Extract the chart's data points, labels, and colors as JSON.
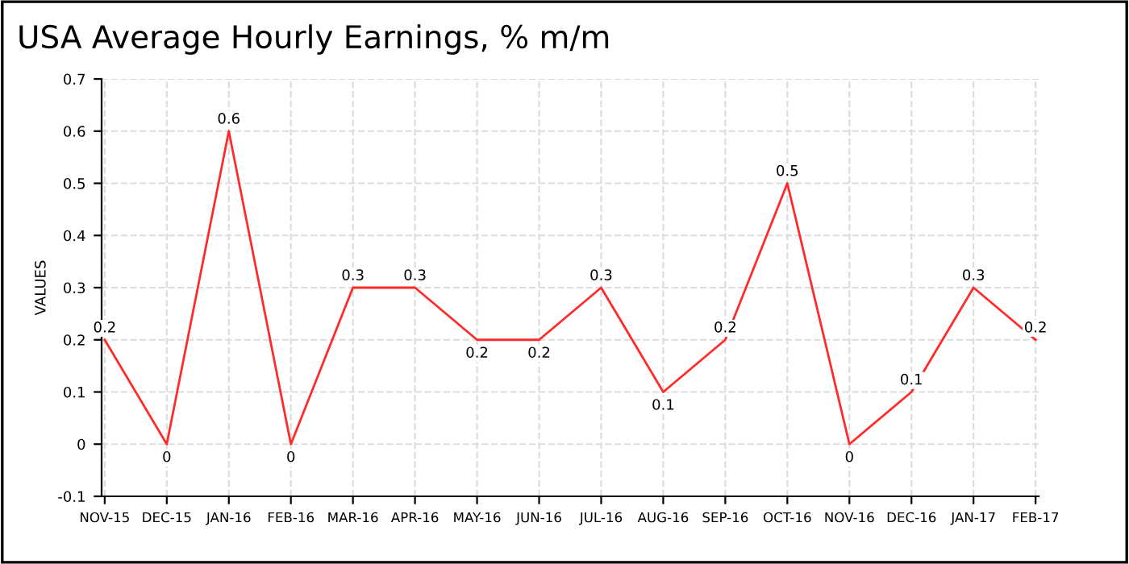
{
  "chart_data": {
    "type": "line",
    "title": "USA Average Hourly Earnings, % m/m",
    "ylabel": "VALUES",
    "categories": [
      "NOV-15",
      "DEC-15",
      "JAN-16",
      "FEB-16",
      "MAR-16",
      "APR-16",
      "MAY-16",
      "JUN-16",
      "JUL-16",
      "AUG-16",
      "SEP-16",
      "OCT-16",
      "NOV-16",
      "DEC-16",
      "JAN-17",
      "FEB-17"
    ],
    "series": [
      {
        "color": "#ff2a2a",
        "values": [
          0.2,
          0,
          0.6,
          0,
          0.3,
          0.3,
          0.2,
          0.2,
          0.3,
          0.1,
          0.2,
          0.5,
          0,
          0.1,
          0.3,
          0.2
        ]
      }
    ],
    "ylim": [
      -0.1,
      0.7
    ],
    "yticks": [
      -0.1,
      0,
      0.1,
      0.2,
      0.3,
      0.4,
      0.5,
      0.6,
      0.7
    ],
    "grid": true,
    "data_labels": true,
    "marker": "none",
    "line_style": "solid",
    "legend": false
  }
}
